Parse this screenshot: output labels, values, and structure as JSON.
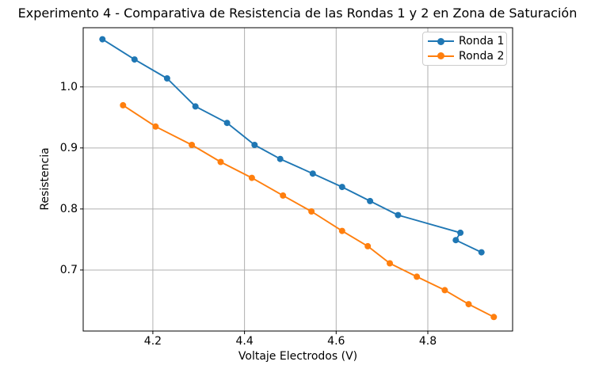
{
  "chart_data": {
    "type": "line",
    "title": "Experimento 4 - Comparativa de Resistencia de las Rondas 1 y 2 en Zona de Saturación",
    "xlabel": "Voltaje Electrodos (V)",
    "ylabel": "Resistencia",
    "xlim": [
      4.048,
      4.985
    ],
    "ylim": [
      0.6,
      1.097
    ],
    "xticks": [
      4.2,
      4.4,
      4.6,
      4.8
    ],
    "yticks": [
      0.7,
      0.8,
      0.9,
      1.0
    ],
    "grid": true,
    "grid_color": "#b0b0b0",
    "legend_position": "upper right",
    "series": [
      {
        "name": "Ronda 1",
        "color": "#1f77b4",
        "marker": "circle",
        "x": [
          4.09,
          4.16,
          4.231,
          4.293,
          4.362,
          4.422,
          4.478,
          4.549,
          4.613,
          4.674,
          4.735,
          4.871,
          4.861,
          4.917
        ],
        "y": [
          1.078,
          1.045,
          1.014,
          0.968,
          0.941,
          0.905,
          0.882,
          0.858,
          0.836,
          0.813,
          0.79,
          0.761,
          0.749,
          0.729
        ]
      },
      {
        "name": "Ronda 2",
        "color": "#ff7f0e",
        "marker": "circle",
        "x": [
          4.135,
          4.206,
          4.285,
          4.348,
          4.416,
          4.484,
          4.546,
          4.613,
          4.669,
          4.717,
          4.776,
          4.837,
          4.889,
          4.944
        ],
        "y": [
          0.97,
          0.935,
          0.905,
          0.877,
          0.851,
          0.822,
          0.796,
          0.764,
          0.739,
          0.711,
          0.689,
          0.667,
          0.644,
          0.623
        ]
      }
    ]
  }
}
